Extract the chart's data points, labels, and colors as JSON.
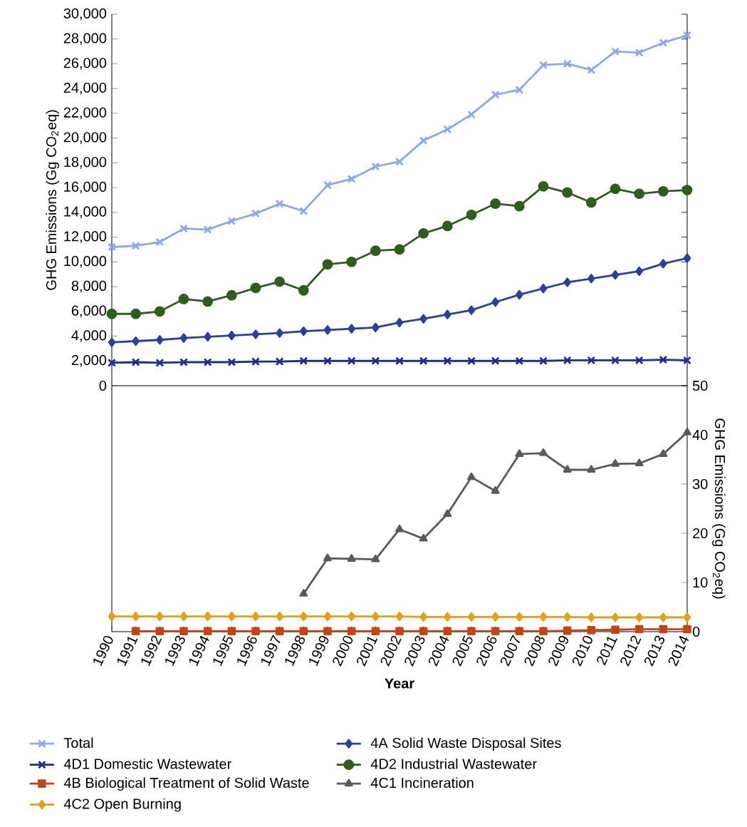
{
  "chart_data": [
    {
      "type": "line",
      "ylabel": "GHG Emissions (Gg CO$_{2}$eq)",
      "categories": [
        "1990",
        "1991",
        "1992",
        "1993",
        "1994",
        "1995",
        "1996",
        "1997",
        "1998",
        "1999",
        "2000",
        "2001",
        "2002",
        "2003",
        "2004",
        "2005",
        "2006",
        "2007",
        "2008",
        "2009",
        "2010",
        "2011",
        "2012",
        "2013",
        "2014"
      ],
      "ylim": [
        0,
        30000
      ],
      "yticks": [
        {
          "value": 0,
          "label": "0"
        },
        {
          "value": 2000,
          "label": "2,000"
        },
        {
          "value": 4000,
          "label": "4,000"
        },
        {
          "value": 6000,
          "label": "6,000"
        },
        {
          "value": 8000,
          "label": "8,000"
        },
        {
          "value": 10000,
          "label": "10,000"
        },
        {
          "value": 12000,
          "label": "12,000"
        },
        {
          "value": 14000,
          "label": "14,000"
        },
        {
          "value": 16000,
          "label": "16,000"
        },
        {
          "value": 18000,
          "label": "18,000"
        },
        {
          "value": 20000,
          "label": "20,000"
        },
        {
          "value": 22000,
          "label": "22,000"
        },
        {
          "value": 24000,
          "label": "24,000"
        },
        {
          "value": 26000,
          "label": "26,000"
        },
        {
          "value": 28000,
          "label": "28,000"
        },
        {
          "value": 30000,
          "label": "30,000"
        }
      ],
      "tick_labels": "y",
      "legend": "bottom",
      "series": [
        {
          "name": "Total",
          "color": "#8ea9e8",
          "marker": "cross",
          "values": [
            11200,
            11300,
            11600,
            12700,
            12600,
            13300,
            13900,
            14700,
            14100,
            16200,
            16700,
            17700,
            18100,
            19800,
            20700,
            21900,
            23500,
            23900,
            25900,
            26000,
            25500,
            27000,
            26900,
            27700,
            28300
          ]
        },
        {
          "name": "4A Solid Waste Disposal Sites",
          "color": "#2a3f9e",
          "marker": "diamond",
          "values": [
            3500,
            3600,
            3700,
            3850,
            3950,
            4050,
            4150,
            4250,
            4400,
            4500,
            4600,
            4700,
            5100,
            5400,
            5750,
            6100,
            6750,
            7350,
            7850,
            8350,
            8650,
            8950,
            9250,
            9850,
            10300
          ]
        },
        {
          "name": "4D1 Domestic Wastewater",
          "color": "#1f2c8c",
          "marker": "cross",
          "values": [
            1850,
            1900,
            1850,
            1900,
            1900,
            1900,
            1950,
            1950,
            2000,
            2000,
            2000,
            2000,
            2000,
            2000,
            2000,
            2000,
            2000,
            2000,
            2000,
            2050,
            2050,
            2050,
            2050,
            2100,
            2050
          ]
        },
        {
          "name": "4D2 Industrial Wastewater",
          "color": "#2e5e1e",
          "marker": "circle",
          "values": [
            5800,
            5800,
            6000,
            7000,
            6800,
            7300,
            7900,
            8400,
            7700,
            9800,
            10000,
            10900,
            11000,
            12300,
            12900,
            13800,
            14700,
            14500,
            16100,
            15600,
            14800,
            15900,
            15500,
            15700,
            15800
          ]
        }
      ]
    },
    {
      "type": "line",
      "ylabel": "GHG Emissions (Gg CO$_{2}$eq)",
      "xlabel": "Year",
      "categories": [
        "1990",
        "1991",
        "1992",
        "1993",
        "1994",
        "1995",
        "1996",
        "1997",
        "1998",
        "1999",
        "2000",
        "2001",
        "2002",
        "2003",
        "2004",
        "2005",
        "2006",
        "2007",
        "2008",
        "2009",
        "2010",
        "2011",
        "2012",
        "2013",
        "2014"
      ],
      "ylim": [
        0,
        50
      ],
      "yticks": [
        0,
        10,
        20,
        30,
        40,
        50
      ],
      "legend": "bottom",
      "series": [
        {
          "name": "4B Biological Treatment of Solid Waste",
          "color": "#c0451a",
          "marker": "square",
          "values": [
            null,
            0.1,
            0.1,
            0.1,
            0.1,
            0.1,
            0.1,
            0.1,
            0.1,
            0.1,
            0.1,
            0.1,
            0.1,
            0.1,
            0.1,
            0.1,
            0.1,
            0.1,
            0.1,
            0.2,
            0.3,
            0.4,
            0.5,
            0.5,
            0.5
          ]
        },
        {
          "name": "4C1 Incineration",
          "color": "#5a5a5a",
          "marker": "triangle",
          "values": [
            null,
            null,
            null,
            null,
            null,
            null,
            null,
            null,
            7.7,
            14.9,
            14.8,
            14.7,
            20.8,
            18.9,
            23.9,
            31.4,
            28.6,
            36.1,
            36.3,
            32.9,
            32.9,
            34.1,
            34.2,
            36.1,
            40.5
          ]
        },
        {
          "name": "4C2 Open Burning",
          "color": "#e0a020",
          "marker": "diamond",
          "values": [
            3.1,
            3.1,
            3.1,
            3.1,
            3.1,
            3.1,
            3.1,
            3.1,
            3.1,
            3.1,
            3.1,
            3.1,
            3.1,
            3.0,
            3.0,
            3.0,
            3.0,
            3.0,
            3.0,
            3.0,
            2.9,
            2.9,
            2.9,
            2.9,
            2.9
          ]
        }
      ]
    }
  ]
}
